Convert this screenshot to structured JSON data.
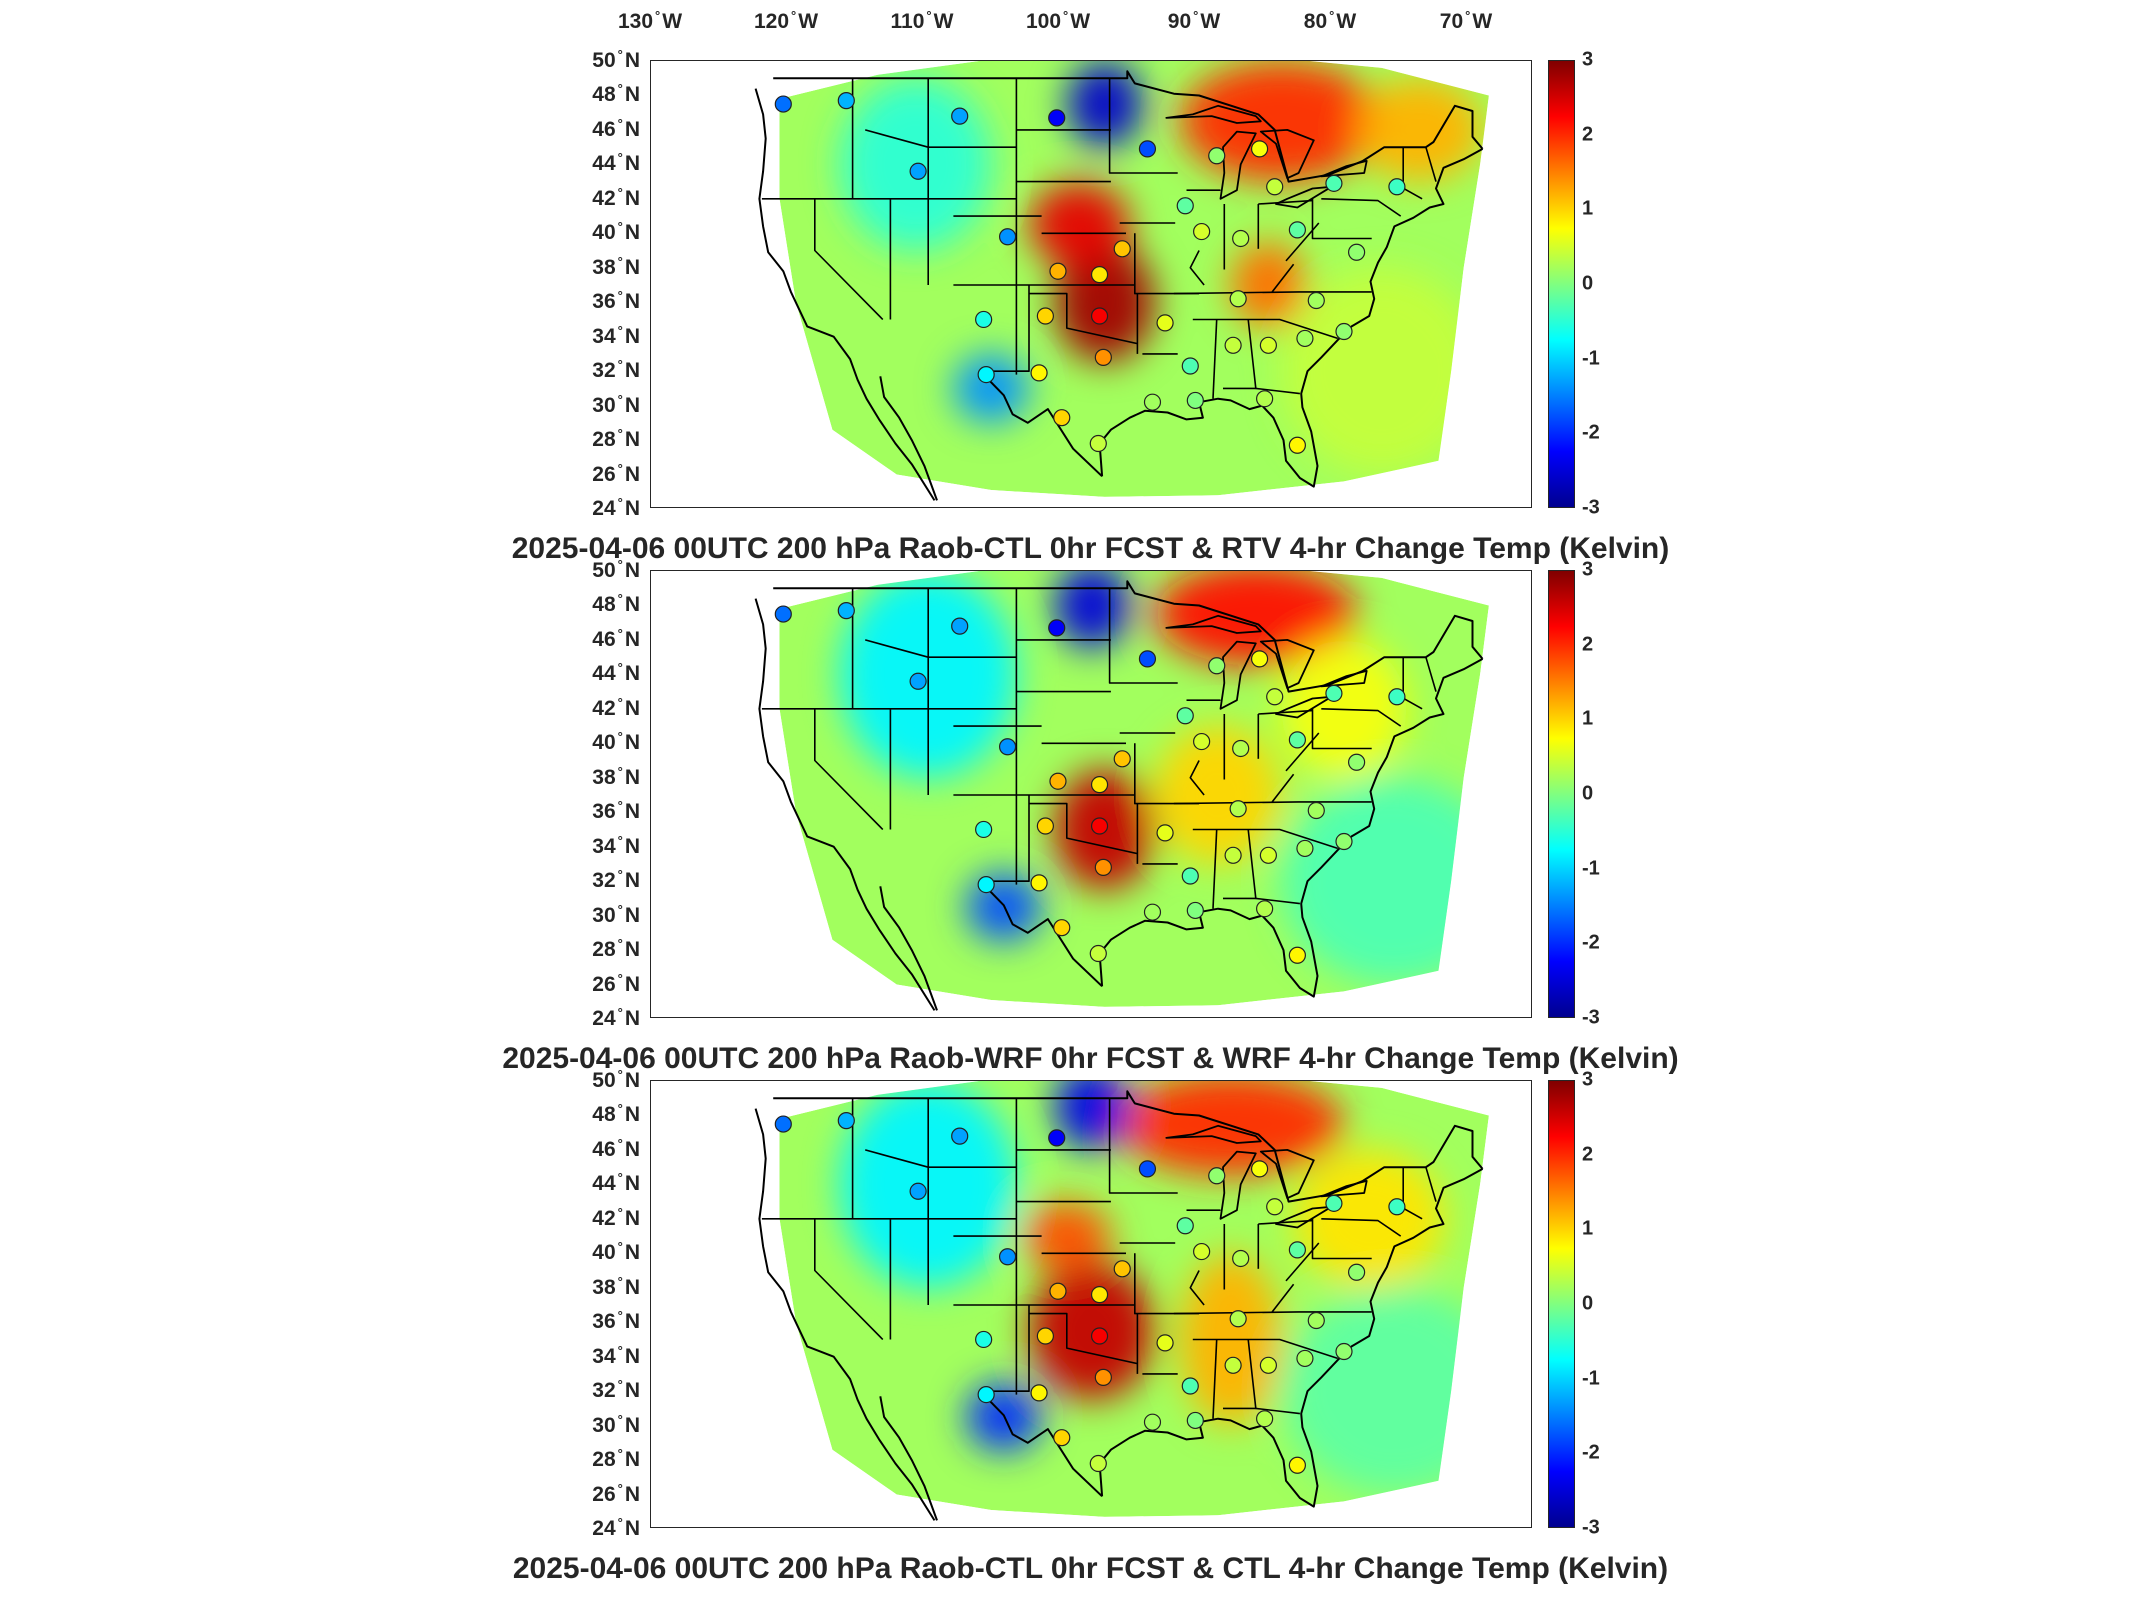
{
  "lon_labels": [
    "130",
    "120",
    "110",
    "100",
    "90",
    "80",
    "70"
  ],
  "lon_suffix": "W",
  "lat_labels": [
    "50",
    "48",
    "46",
    "44",
    "42",
    "40",
    "38",
    "36",
    "34",
    "32",
    "30",
    "28",
    "26",
    "24"
  ],
  "lat_suffix": "N",
  "colorbar": {
    "ticks": [
      "3",
      "2",
      "1",
      "0",
      "-1",
      "-2",
      "-3"
    ],
    "min": -3,
    "max": 3,
    "colormap": "jet"
  },
  "panels": [
    {
      "title": "2025-04-06 00UTC 200 hPa Raob-CTL 0hr FCST & RTV 4-hr Change Temp (Kelvin)"
    },
    {
      "title": "2025-04-06 00UTC 200 hPa Raob-WRF 0hr FCST & WRF 4-hr Change Temp (Kelvin)"
    },
    {
      "title": "2025-04-06 00UTC 200 hPa Raob-CTL 0hr FCST & CTL 4-hr Change Temp (Kelvin)"
    }
  ],
  "stations": [
    {
      "lon": -122.5,
      "lat": 47.5,
      "value": -1.6
    },
    {
      "lon": -117.5,
      "lat": 47.7,
      "value": -1.2
    },
    {
      "lon": -108.5,
      "lat": 46.8,
      "value": -1.3
    },
    {
      "lon": -100.8,
      "lat": 46.7,
      "value": -2.3
    },
    {
      "lon": -93.6,
      "lat": 44.9,
      "value": -1.8
    },
    {
      "lon": -111.8,
      "lat": 43.6,
      "value": -1.3
    },
    {
      "lon": -88.1,
      "lat": 44.5,
      "value": 0.1
    },
    {
      "lon": -84.7,
      "lat": 44.9,
      "value": 0.7
    },
    {
      "lon": -83.5,
      "lat": 42.7,
      "value": 0.4
    },
    {
      "lon": -78.8,
      "lat": 42.9,
      "value": -0.3
    },
    {
      "lon": -73.8,
      "lat": 42.7,
      "value": -0.4
    },
    {
      "lon": -90.6,
      "lat": 41.6,
      "value": -0.2
    },
    {
      "lon": -89.3,
      "lat": 40.1,
      "value": 0.5
    },
    {
      "lon": -86.2,
      "lat": 39.7,
      "value": 0.3
    },
    {
      "lon": -81.7,
      "lat": 40.2,
      "value": -0.2
    },
    {
      "lon": -95.6,
      "lat": 39.1,
      "value": 1.1
    },
    {
      "lon": -104.7,
      "lat": 39.8,
      "value": -1.4
    },
    {
      "lon": -100.7,
      "lat": 37.8,
      "value": 1.2
    },
    {
      "lon": -97.4,
      "lat": 37.6,
      "value": 0.9
    },
    {
      "lon": -86.4,
      "lat": 36.2,
      "value": 0.3
    },
    {
      "lon": -80.2,
      "lat": 36.1,
      "value": 0.2
    },
    {
      "lon": -77.0,
      "lat": 38.9,
      "value": 0.1
    },
    {
      "lon": -106.6,
      "lat": 35.0,
      "value": -0.6
    },
    {
      "lon": -101.7,
      "lat": 35.2,
      "value": 1.0
    },
    {
      "lon": -97.4,
      "lat": 35.2,
      "value": 2.3
    },
    {
      "lon": -97.1,
      "lat": 32.8,
      "value": 1.4
    },
    {
      "lon": -92.2,
      "lat": 34.8,
      "value": 0.6
    },
    {
      "lon": -90.2,
      "lat": 32.3,
      "value": -0.3
    },
    {
      "lon": -86.8,
      "lat": 33.5,
      "value": 0.4
    },
    {
      "lon": -84.0,
      "lat": 33.5,
      "value": 0.5
    },
    {
      "lon": -81.1,
      "lat": 33.9,
      "value": 0.2
    },
    {
      "lon": -78.0,
      "lat": 34.3,
      "value": 0.1
    },
    {
      "lon": -106.4,
      "lat": 31.8,
      "value": -0.8
    },
    {
      "lon": -102.2,
      "lat": 31.9,
      "value": 0.8
    },
    {
      "lon": -100.4,
      "lat": 29.3,
      "value": 1.0
    },
    {
      "lon": -97.5,
      "lat": 27.8,
      "value": 0.4
    },
    {
      "lon": -93.2,
      "lat": 30.2,
      "value": 0.2
    },
    {
      "lon": -89.8,
      "lat": 30.3,
      "value": 0.0
    },
    {
      "lon": -84.3,
      "lat": 30.4,
      "value": 0.3
    },
    {
      "lon": -81.7,
      "lat": 27.7,
      "value": 0.8
    }
  ]
}
